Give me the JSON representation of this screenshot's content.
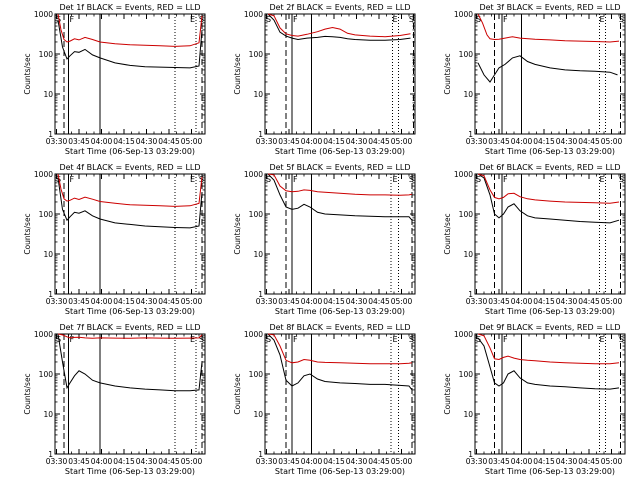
{
  "figure": {
    "xlabel": "Start Time (06-Sep-13 03:29:00)",
    "ylabel": "Counts/sec"
  },
  "chart_data": [
    {
      "type": "line",
      "title": "Det 1f BLACK = Events, RED = LLD",
      "xlabel": "Start Time (06-Sep-13 03:29:00)",
      "ylabel": "Counts/sec",
      "x_ticks": [
        "03:30",
        "03:45",
        "04:00",
        "04:15",
        "04:30",
        "04:45",
        "05:00"
      ],
      "y_ticks": [
        "1",
        "10",
        "100",
        "1000"
      ],
      "ylim": [
        1,
        1000
      ],
      "y_scale": "log",
      "x_range_minutes": [
        0,
        100
      ],
      "markers": {
        "S": 0,
        "F": 9,
        "E": 94,
        "S2": 100
      },
      "vlines": {
        "dashed": [
          6,
          98
        ],
        "solid": [
          9,
          30
        ],
        "dotted": [
          80,
          94
        ]
      },
      "series": [
        {
          "color": "#000000",
          "x": [
            2,
            5,
            8,
            10,
            13,
            16,
            20,
            25,
            30,
            40,
            50,
            60,
            70,
            80,
            90,
            96,
            98
          ],
          "values": [
            700,
            150,
            75,
            90,
            115,
            110,
            130,
            95,
            80,
            60,
            52,
            48,
            47,
            46,
            45,
            50,
            400
          ]
        },
        {
          "color": "#cc0000",
          "x": [
            2,
            4,
            6,
            8,
            10,
            13,
            16,
            20,
            25,
            30,
            40,
            50,
            60,
            70,
            80,
            90,
            96,
            98
          ],
          "values": [
            1000,
            400,
            230,
            200,
            210,
            240,
            225,
            260,
            230,
            200,
            180,
            170,
            165,
            160,
            155,
            160,
            190,
            900
          ]
        }
      ]
    },
    {
      "type": "line",
      "title": "Det 2f BLACK = Events, RED = LLD",
      "xlabel": "Start Time (06-Sep-13 03:29:00)",
      "ylabel": "Counts/sec",
      "x_ticks": [
        "03:30",
        "03:45",
        "04:00",
        "04:15",
        "04:30",
        "04:45",
        "05:00"
      ],
      "y_ticks": [
        "1",
        "10",
        "100",
        "1000"
      ],
      "ylim": [
        1,
        1000
      ],
      "y_scale": "log",
      "x_range_minutes": [
        0,
        100
      ],
      "markers": {
        "S": 0,
        "F": 18,
        "E": 89,
        "S2": 100
      },
      "vlines": {
        "dashed": [
          14,
          99
        ],
        "solid": [
          18,
          31
        ],
        "dotted": [
          85,
          89
        ]
      },
      "series": [
        {
          "color": "#000000",
          "x": [
            2,
            6,
            10,
            14,
            18,
            22,
            28,
            35,
            40,
            45,
            50,
            55,
            60,
            70,
            80,
            90,
            97
          ],
          "values": [
            1000,
            700,
            350,
            280,
            250,
            230,
            250,
            260,
            275,
            270,
            260,
            240,
            230,
            220,
            220,
            230,
            250
          ]
        },
        {
          "color": "#cc0000",
          "x": [
            2,
            6,
            10,
            14,
            18,
            22,
            28,
            35,
            40,
            45,
            50,
            55,
            60,
            70,
            80,
            90,
            97
          ],
          "values": [
            1000,
            900,
            450,
            320,
            290,
            280,
            310,
            360,
            420,
            460,
            420,
            330,
            300,
            280,
            270,
            290,
            320
          ]
        }
      ]
    },
    {
      "type": "line",
      "title": "Det 3f BLACK = Events, RED = LLD",
      "xlabel": "Start Time (06-Sep-13 03:29:00)",
      "ylabel": "Counts/sec",
      "x_ticks": [
        "03:30",
        "03:45",
        "04:00",
        "04:15",
        "04:30",
        "04:45",
        "05:00"
      ],
      "y_ticks": [
        "1",
        "10",
        "100",
        "1000"
      ],
      "ylim": [
        1,
        1000
      ],
      "y_scale": "log",
      "x_range_minutes": [
        0,
        100
      ],
      "markers": {
        "S": 0,
        "F": 18,
        "E": 87,
        "S2": 100
      },
      "vlines": {
        "dashed": [
          13,
          97
        ],
        "solid": [
          18,
          31
        ],
        "dotted": [
          83,
          87
        ]
      },
      "series": [
        {
          "color": "#000000",
          "x": [
            2,
            6,
            10,
            13,
            16,
            20,
            25,
            30,
            35,
            40,
            50,
            60,
            70,
            80,
            90,
            95
          ],
          "values": [
            60,
            30,
            20,
            30,
            45,
            55,
            80,
            90,
            65,
            55,
            45,
            40,
            38,
            37,
            35,
            30
          ]
        },
        {
          "color": "#cc0000",
          "x": [
            2,
            5,
            8,
            10,
            13,
            16,
            20,
            25,
            30,
            40,
            50,
            60,
            70,
            80,
            90,
            96
          ],
          "values": [
            1000,
            600,
            300,
            240,
            230,
            235,
            250,
            270,
            250,
            235,
            225,
            215,
            210,
            205,
            200,
            210
          ]
        }
      ]
    },
    {
      "type": "line",
      "title": "Det 4f BLACK = Events, RED = LLD",
      "xlabel": "Start Time (06-Sep-13 03:29:00)",
      "ylabel": "Counts/sec",
      "x_ticks": [
        "03:30",
        "03:45",
        "04:00",
        "04:15",
        "04:30",
        "04:45",
        "05:00"
      ],
      "y_ticks": [
        "1",
        "10",
        "100",
        "1000"
      ],
      "ylim": [
        1,
        1000
      ],
      "y_scale": "log",
      "x_range_minutes": [
        0,
        100
      ],
      "markers": {
        "S": 0,
        "F": 9,
        "E": 94,
        "S2": 100
      },
      "vlines": {
        "dashed": [
          6,
          98
        ],
        "solid": [
          9,
          30
        ],
        "dotted": [
          80,
          94
        ]
      },
      "series": [
        {
          "color": "#000000",
          "x": [
            2,
            5,
            8,
            10,
            13,
            16,
            20,
            25,
            30,
            40,
            50,
            60,
            70,
            80,
            90,
            96,
            98
          ],
          "values": [
            800,
            130,
            70,
            85,
            110,
            105,
            120,
            90,
            75,
            60,
            55,
            50,
            48,
            46,
            45,
            50,
            350
          ]
        },
        {
          "color": "#cc0000",
          "x": [
            2,
            4,
            6,
            8,
            10,
            13,
            16,
            20,
            25,
            30,
            40,
            50,
            60,
            70,
            80,
            90,
            96,
            98
          ],
          "values": [
            1000,
            420,
            240,
            210,
            220,
            250,
            230,
            265,
            235,
            205,
            185,
            170,
            165,
            160,
            155,
            160,
            185,
            850
          ]
        }
      ]
    },
    {
      "type": "line",
      "title": "Det 5f BLACK = Events, RED = LLD",
      "xlabel": "Start Time (06-Sep-13 03:29:00)",
      "ylabel": "Counts/sec",
      "x_ticks": [
        "03:30",
        "03:45",
        "04:00",
        "04:15",
        "04:30",
        "04:45",
        "05:00"
      ],
      "y_ticks": [
        "1",
        "10",
        "100",
        "1000"
      ],
      "ylim": [
        1,
        1000
      ],
      "y_scale": "log",
      "x_range_minutes": [
        0,
        100
      ],
      "markers": {
        "S": 0,
        "F": 18,
        "E": 89,
        "S2": 100
      },
      "vlines": {
        "dashed": [
          14,
          98
        ],
        "solid": [
          18,
          31
        ],
        "dotted": [
          84,
          89
        ]
      },
      "series": [
        {
          "color": "#000000",
          "x": [
            2,
            6,
            10,
            14,
            18,
            22,
            26,
            30,
            35,
            40,
            50,
            60,
            70,
            80,
            90,
            96,
            98
          ],
          "values": [
            1000,
            700,
            300,
            150,
            130,
            140,
            175,
            150,
            110,
            100,
            95,
            90,
            88,
            85,
            85,
            85,
            70
          ]
        },
        {
          "color": "#cc0000",
          "x": [
            2,
            6,
            10,
            14,
            18,
            22,
            26,
            30,
            35,
            40,
            50,
            60,
            70,
            80,
            90,
            96,
            98
          ],
          "values": [
            1000,
            950,
            500,
            380,
            360,
            370,
            400,
            390,
            360,
            350,
            330,
            310,
            300,
            300,
            295,
            300,
            310
          ]
        }
      ]
    },
    {
      "type": "line",
      "title": "Det 6f BLACK = Events, RED = LLD",
      "xlabel": "Start Time (06-Sep-13 03:29:00)",
      "ylabel": "Counts/sec",
      "x_ticks": [
        "03:30",
        "03:45",
        "04:00",
        "04:15",
        "04:30",
        "04:45",
        "05:00"
      ],
      "y_ticks": [
        "1",
        "10",
        "100",
        "1000"
      ],
      "ylim": [
        1,
        1000
      ],
      "y_scale": "log",
      "x_range_minutes": [
        0,
        100
      ],
      "markers": {
        "S": 0,
        "F": 18,
        "E": 87,
        "S2": 100
      },
      "vlines": {
        "dashed": [
          13,
          97
        ],
        "solid": [
          18,
          31
        ],
        "dotted": [
          83,
          87
        ]
      },
      "series": [
        {
          "color": "#000000",
          "x": [
            2,
            6,
            10,
            13,
            16,
            19,
            22,
            26,
            30,
            35,
            40,
            50,
            60,
            70,
            80,
            90,
            96
          ],
          "values": [
            1000,
            800,
            300,
            100,
            80,
            100,
            150,
            180,
            120,
            90,
            80,
            75,
            70,
            65,
            62,
            60,
            70
          ]
        },
        {
          "color": "#cc0000",
          "x": [
            2,
            6,
            10,
            13,
            16,
            19,
            22,
            26,
            30,
            35,
            40,
            50,
            60,
            70,
            80,
            90,
            96
          ],
          "values": [
            1000,
            900,
            400,
            260,
            240,
            260,
            320,
            330,
            270,
            240,
            225,
            210,
            200,
            195,
            190,
            185,
            200
          ]
        }
      ]
    },
    {
      "type": "line",
      "title": "Det 7f BLACK = Events, RED = LLD",
      "xlabel": "Start Time (06-Sep-13 03:29:00)",
      "ylabel": "Counts/sec",
      "x_ticks": [
        "03:30",
        "03:45",
        "04:00",
        "04:15",
        "04:30",
        "04:45",
        "05:00"
      ],
      "y_ticks": [
        "1",
        "10",
        "100",
        "1000"
      ],
      "ylim": [
        1,
        1000
      ],
      "y_scale": "log",
      "x_range_minutes": [
        0,
        100
      ],
      "markers": {
        "S": 0,
        "F": 9,
        "E": 94,
        "S2": 100
      },
      "vlines": {
        "dashed": [
          6,
          98
        ],
        "solid": [
          9,
          30
        ],
        "dotted": [
          80,
          94
        ]
      },
      "series": [
        {
          "color": "#000000",
          "x": [
            2,
            5,
            8,
            10,
            13,
            16,
            20,
            25,
            30,
            40,
            50,
            60,
            70,
            80,
            90,
            96,
            98
          ],
          "values": [
            1000,
            200,
            45,
            60,
            90,
            120,
            100,
            70,
            60,
            50,
            45,
            42,
            40,
            38,
            38,
            40,
            200
          ]
        },
        {
          "color": "#cc0000",
          "x": [
            2,
            5,
            8,
            10,
            13,
            16,
            20,
            25,
            30,
            40,
            50,
            60,
            70,
            80,
            90,
            96,
            98
          ],
          "values": [
            1000,
            950,
            850,
            800,
            820,
            830,
            800,
            780,
            800,
            790,
            780,
            800,
            790,
            780,
            790,
            800,
            950
          ]
        }
      ]
    },
    {
      "type": "line",
      "title": "Det 8f BLACK = Events, RED = LLD",
      "xlabel": "Start Time (06-Sep-13 03:29:00)",
      "ylabel": "Counts/sec",
      "x_ticks": [
        "03:30",
        "03:45",
        "04:00",
        "04:15",
        "04:30",
        "04:45",
        "05:00"
      ],
      "y_ticks": [
        "1",
        "10",
        "100",
        "1000"
      ],
      "ylim": [
        1,
        1000
      ],
      "y_scale": "log",
      "x_range_minutes": [
        0,
        100
      ],
      "markers": {
        "S": 0,
        "F": 18,
        "E": 89,
        "S2": 100
      },
      "vlines": {
        "dashed": [
          14,
          98
        ],
        "solid": [
          18,
          31
        ],
        "dotted": [
          84,
          89
        ]
      },
      "series": [
        {
          "color": "#000000",
          "x": [
            2,
            6,
            10,
            14,
            18,
            22,
            26,
            30,
            35,
            40,
            50,
            60,
            70,
            80,
            90,
            96,
            98
          ],
          "values": [
            1000,
            700,
            300,
            70,
            50,
            60,
            90,
            100,
            75,
            65,
            60,
            58,
            55,
            55,
            52,
            50,
            40
          ]
        },
        {
          "color": "#cc0000",
          "x": [
            2,
            6,
            10,
            14,
            18,
            22,
            26,
            30,
            35,
            40,
            50,
            60,
            70,
            80,
            90,
            96,
            98
          ],
          "values": [
            1000,
            950,
            500,
            220,
            190,
            200,
            230,
            220,
            200,
            195,
            190,
            185,
            180,
            180,
            180,
            185,
            190
          ]
        }
      ]
    },
    {
      "type": "line",
      "title": "Det 9f BLACK = Events, RED = LLD",
      "xlabel": "Start Time (06-Sep-13 03:29:00)",
      "ylabel": "Counts/sec",
      "x_ticks": [
        "03:30",
        "03:45",
        "04:00",
        "04:15",
        "04:30",
        "04:45",
        "05:00"
      ],
      "y_ticks": [
        "1",
        "10",
        "100",
        "1000"
      ],
      "ylim": [
        1,
        1000
      ],
      "y_scale": "log",
      "x_range_minutes": [
        0,
        100
      ],
      "markers": {
        "S": 0,
        "F": 18,
        "E": 87,
        "S2": 100
      },
      "vlines": {
        "dashed": [
          13,
          97
        ],
        "solid": [
          18,
          31
        ],
        "dotted": [
          83,
          87
        ]
      },
      "series": [
        {
          "color": "#000000",
          "x": [
            2,
            6,
            10,
            13,
            16,
            19,
            22,
            26,
            30,
            35,
            40,
            50,
            60,
            70,
            80,
            90,
            96
          ],
          "values": [
            800,
            500,
            150,
            60,
            50,
            60,
            100,
            120,
            80,
            60,
            55,
            50,
            48,
            45,
            43,
            42,
            45
          ]
        },
        {
          "color": "#cc0000",
          "x": [
            2,
            6,
            10,
            13,
            16,
            19,
            22,
            26,
            30,
            35,
            40,
            50,
            60,
            70,
            80,
            90,
            96
          ],
          "values": [
            1000,
            900,
            450,
            240,
            230,
            260,
            280,
            250,
            230,
            220,
            215,
            200,
            190,
            185,
            180,
            180,
            190
          ]
        }
      ]
    }
  ]
}
